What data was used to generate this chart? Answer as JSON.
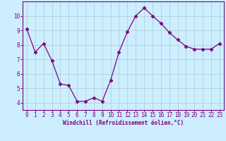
{
  "x": [
    0,
    1,
    2,
    3,
    4,
    5,
    6,
    7,
    8,
    9,
    10,
    11,
    12,
    13,
    14,
    15,
    16,
    17,
    18,
    19,
    20,
    21,
    22,
    23
  ],
  "y": [
    9.1,
    7.5,
    8.1,
    6.9,
    5.3,
    5.2,
    4.1,
    4.1,
    4.35,
    4.1,
    5.55,
    7.5,
    8.9,
    10.0,
    10.55,
    10.0,
    9.5,
    8.85,
    8.35,
    7.9,
    7.7,
    7.7,
    7.7,
    8.1
  ],
  "xlim": [
    -0.5,
    23.5
  ],
  "ylim": [
    3.5,
    11.0
  ],
  "yticks": [
    4,
    5,
    6,
    7,
    8,
    9,
    10
  ],
  "xticks": [
    0,
    1,
    2,
    3,
    4,
    5,
    6,
    7,
    8,
    9,
    10,
    11,
    12,
    13,
    14,
    15,
    16,
    17,
    18,
    19,
    20,
    21,
    22,
    23
  ],
  "xlabel": "Windchill (Refroidissement éolien,°C)",
  "line_color": "#800080",
  "marker": "D",
  "marker_size": 2.5,
  "bg_color": "#cceeff",
  "grid_color": "#aacccc",
  "spine_color": "#800080",
  "tick_color": "#800080",
  "label_color": "#800080",
  "font_family": "monospace",
  "tick_fontsize": 5.5,
  "xlabel_fontsize": 5.5
}
